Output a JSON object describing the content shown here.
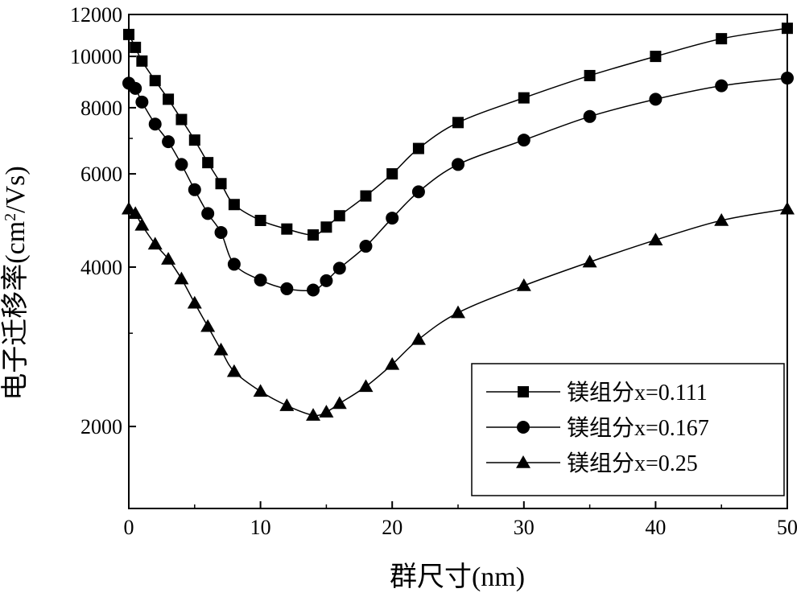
{
  "chart_data": {
    "type": "line",
    "title": "",
    "xlabel": "群尺寸(nm)",
    "ylabel": {
      "prefix": "电子迁移率(cm",
      "superscript": "2",
      "suffix": "/Vs)"
    },
    "xlim": [
      0,
      50
    ],
    "ylim": [
      1400,
      12000
    ],
    "yscale": "log",
    "x_ticks": [
      0,
      10,
      20,
      30,
      40,
      50
    ],
    "x_tick_labels": [
      "0",
      "10",
      "20",
      "30",
      "40",
      "50"
    ],
    "y_ticks": [
      2000,
      4000,
      6000,
      8000,
      10000,
      12000
    ],
    "y_tick_labels": [
      "2000",
      "4000",
      "6000",
      "8000",
      "10000",
      "12000"
    ],
    "grid": false,
    "legend_position": "bottom-right",
    "series": [
      {
        "name": "镁组分x=0.111",
        "marker": "square",
        "color": "#000000",
        "x": [
          0,
          0.5,
          1,
          2,
          3,
          4,
          5,
          6,
          7,
          8,
          10,
          12,
          14,
          15,
          16,
          18,
          20,
          22,
          25,
          30,
          35,
          40,
          45,
          50
        ],
        "y": [
          11000,
          10400,
          9800,
          9000,
          8300,
          7600,
          6950,
          6300,
          5750,
          5250,
          4900,
          4720,
          4600,
          4760,
          5000,
          5450,
          6000,
          6700,
          7500,
          8350,
          9200,
          10000,
          10800,
          11300
        ]
      },
      {
        "name": "镁组分x=0.167",
        "marker": "circle",
        "color": "#000000",
        "x": [
          0,
          0.5,
          1,
          2,
          3,
          4,
          5,
          6,
          7,
          8,
          10,
          12,
          14,
          15,
          16,
          18,
          20,
          22,
          25,
          30,
          35,
          40,
          45,
          50
        ],
        "y": [
          8900,
          8700,
          8200,
          7450,
          6900,
          6250,
          5600,
          5050,
          4650,
          4050,
          3780,
          3640,
          3620,
          3770,
          3980,
          4380,
          4950,
          5550,
          6250,
          6950,
          7700,
          8300,
          8800,
          9100
        ]
      },
      {
        "name": "镁组分x=0.25",
        "marker": "triangle",
        "color": "#000000",
        "x": [
          0,
          0.5,
          1,
          2,
          3,
          4,
          5,
          6,
          7,
          8,
          10,
          12,
          14,
          15,
          16,
          18,
          20,
          22,
          25,
          30,
          35,
          40,
          45,
          50
        ],
        "y": [
          5150,
          5050,
          4800,
          4420,
          4140,
          3800,
          3420,
          3090,
          2790,
          2540,
          2330,
          2190,
          2100,
          2130,
          2210,
          2380,
          2620,
          2920,
          3280,
          3690,
          4090,
          4500,
          4900,
          5150
        ]
      }
    ]
  }
}
